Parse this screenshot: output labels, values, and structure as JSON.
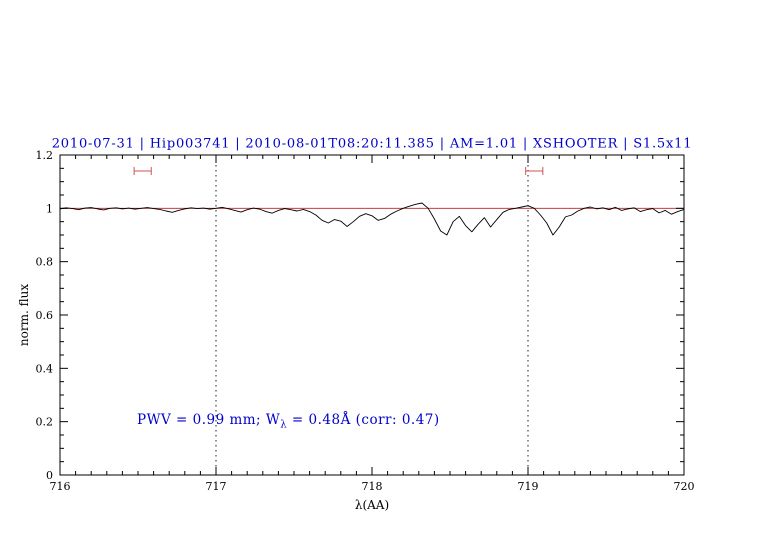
{
  "chart_data": {
    "type": "line",
    "title": "2010-07-31 | Hip003741 | 2010-08-01T08:20:11.385 | AM=1.01 | XSHOOTER | S1.5x11",
    "title_color": "#0000cc",
    "xlabel": "λ(AA)",
    "ylabel": "norm. flux",
    "xlim": [
      716,
      720
    ],
    "ylim": [
      0,
      1.2
    ],
    "x_ticks": [
      716,
      717,
      718,
      719,
      720
    ],
    "x_tick_labels": [
      "716",
      "717",
      "718",
      "719",
      "720"
    ],
    "y_ticks": [
      0,
      0.2,
      0.4,
      0.6,
      0.8,
      1,
      1.2
    ],
    "y_tick_labels": [
      "0",
      "0.2",
      "0.4",
      "0.6",
      "0.8",
      "1",
      "1.2"
    ],
    "x_minor_step": 0.1,
    "y_minor_step": 0.05,
    "grid": "off",
    "dotted_vlines": [
      717,
      719
    ],
    "continuum_y": 1.0,
    "continuum_color": "#bb2222",
    "marker_color": "#cc5555",
    "markers": [
      {
        "x_center": 716.53,
        "half_width": 0.055,
        "y": 1.14
      },
      {
        "x_center": 719.04,
        "half_width": 0.055,
        "y": 1.14
      }
    ],
    "annotation": {
      "prefix": "PWV = 0.99 mm; W",
      "sub": "λ",
      "suffix": " = 0.48Å (corr: 0.47)",
      "color": "#0000cc",
      "x": 716.5,
      "y": 0.2
    },
    "series": [
      {
        "name": "spectrum",
        "color": "#000000",
        "points": [
          [
            716.0,
            0.998
          ],
          [
            716.04,
            1.002
          ],
          [
            716.08,
            0.999
          ],
          [
            716.12,
            0.995
          ],
          [
            716.16,
            1.001
          ],
          [
            716.2,
            1.003
          ],
          [
            716.24,
            0.998
          ],
          [
            716.28,
            0.994
          ],
          [
            716.32,
            1.0
          ],
          [
            716.36,
            1.002
          ],
          [
            716.4,
            0.998
          ],
          [
            716.44,
            1.001
          ],
          [
            716.48,
            0.997
          ],
          [
            716.52,
            1.0
          ],
          [
            716.56,
            1.003
          ],
          [
            716.6,
            0.999
          ],
          [
            716.64,
            0.996
          ],
          [
            716.68,
            0.99
          ],
          [
            716.72,
            0.985
          ],
          [
            716.76,
            0.992
          ],
          [
            716.8,
            0.998
          ],
          [
            716.84,
            1.002
          ],
          [
            716.88,
            0.999
          ],
          [
            716.92,
            1.001
          ],
          [
            716.96,
            0.997
          ],
          [
            717.0,
            1.0
          ],
          [
            717.04,
            1.004
          ],
          [
            717.08,
            0.998
          ],
          [
            717.12,
            0.992
          ],
          [
            717.16,
            0.986
          ],
          [
            717.2,
            0.995
          ],
          [
            717.24,
            1.001
          ],
          [
            717.28,
            0.997
          ],
          [
            717.32,
            0.988
          ],
          [
            717.36,
            0.982
          ],
          [
            717.4,
            0.992
          ],
          [
            717.44,
            0.999
          ],
          [
            717.48,
            0.995
          ],
          [
            717.52,
            0.99
          ],
          [
            717.56,
            0.996
          ],
          [
            717.6,
            0.988
          ],
          [
            717.64,
            0.975
          ],
          [
            717.68,
            0.955
          ],
          [
            717.72,
            0.945
          ],
          [
            717.76,
            0.958
          ],
          [
            717.8,
            0.952
          ],
          [
            717.84,
            0.932
          ],
          [
            717.88,
            0.95
          ],
          [
            717.92,
            0.97
          ],
          [
            717.96,
            0.98
          ],
          [
            718.0,
            0.972
          ],
          [
            718.04,
            0.955
          ],
          [
            718.08,
            0.962
          ],
          [
            718.12,
            0.978
          ],
          [
            718.16,
            0.99
          ],
          [
            718.2,
            1.0
          ],
          [
            718.24,
            1.008
          ],
          [
            718.28,
            1.015
          ],
          [
            718.32,
            1.02
          ],
          [
            718.36,
            1.0
          ],
          [
            718.4,
            0.96
          ],
          [
            718.44,
            0.915
          ],
          [
            718.48,
            0.9
          ],
          [
            718.52,
            0.95
          ],
          [
            718.56,
            0.97
          ],
          [
            718.6,
            0.935
          ],
          [
            718.64,
            0.912
          ],
          [
            718.68,
            0.94
          ],
          [
            718.72,
            0.965
          ],
          [
            718.76,
            0.93
          ],
          [
            718.8,
            0.958
          ],
          [
            718.84,
            0.985
          ],
          [
            718.88,
            0.996
          ],
          [
            718.92,
            1.0
          ],
          [
            718.96,
            1.005
          ],
          [
            719.0,
            1.01
          ],
          [
            719.04,
            1.0
          ],
          [
            719.08,
            0.975
          ],
          [
            719.12,
            0.945
          ],
          [
            719.16,
            0.9
          ],
          [
            719.2,
            0.93
          ],
          [
            719.24,
            0.968
          ],
          [
            719.28,
            0.975
          ],
          [
            719.32,
            0.99
          ],
          [
            719.36,
            1.0
          ],
          [
            719.4,
            1.005
          ],
          [
            719.44,
            0.998
          ],
          [
            719.48,
            1.002
          ],
          [
            719.52,
            0.995
          ],
          [
            719.56,
            1.004
          ],
          [
            719.6,
            0.992
          ],
          [
            719.64,
            0.998
          ],
          [
            719.68,
            1.002
          ],
          [
            719.72,
            0.988
          ],
          [
            719.76,
            0.995
          ],
          [
            719.8,
            0.999
          ],
          [
            719.84,
            0.983
          ],
          [
            719.88,
            0.992
          ],
          [
            719.92,
            0.978
          ],
          [
            719.96,
            0.988
          ],
          [
            720.0,
            0.996
          ]
        ]
      }
    ]
  }
}
